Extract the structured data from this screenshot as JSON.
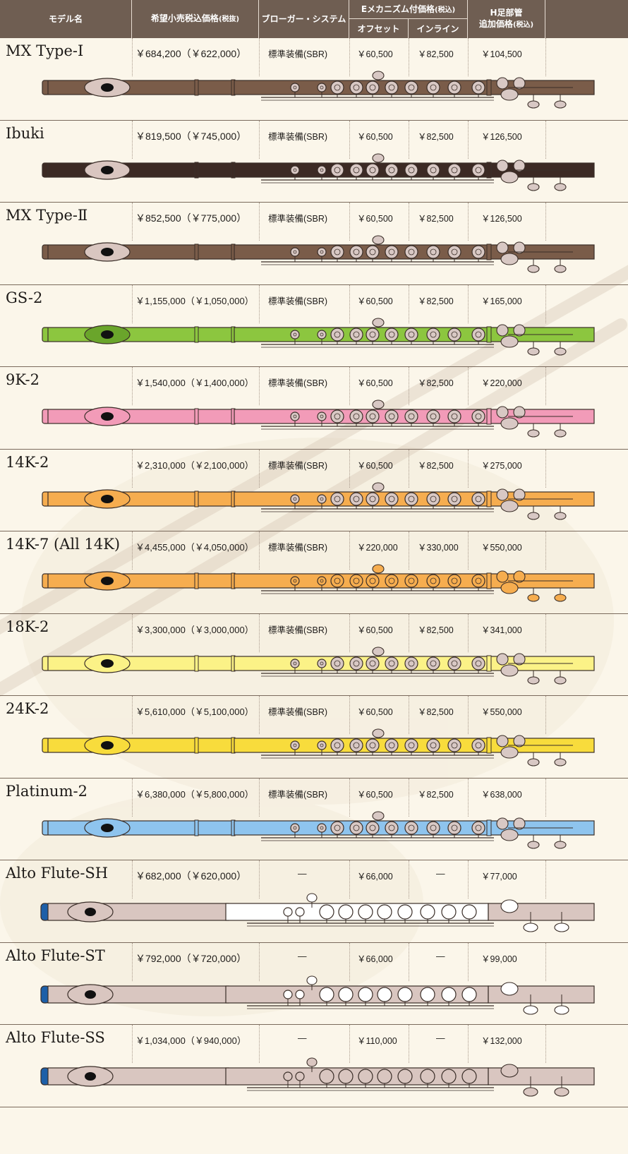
{
  "header": {
    "model": "モデル名",
    "retail_price": "希望小売税込価格",
    "retail_price_note": "(税抜)",
    "brogger": "ブローガー・システム",
    "e_mech": "Eメカニズム付価格",
    "e_mech_note": "(税込)",
    "offset": "オフセット",
    "inline": "インライン",
    "h_foot_line1": "H足部管",
    "h_foot_line2": "追加価格",
    "h_foot_note": "(税込)"
  },
  "rows": [
    {
      "model": "MX Type-Ⅰ",
      "price": "￥684,200",
      "price_ex": "（￥622,000）",
      "brogger": "標準装備(SBR)",
      "offset": "￥60,500",
      "inline": "￥82,500",
      "hfoot": "￥104,500",
      "body_color": "#7a5c49",
      "lip_color": "#d9c6c0",
      "key_color": "#d8c8c4",
      "type": "flute"
    },
    {
      "model": "Ibuki",
      "price": "￥819,500",
      "price_ex": "（￥745,000）",
      "brogger": "標準装備(SBR)",
      "offset": "￥60,500",
      "inline": "￥82,500",
      "hfoot": "￥126,500",
      "body_color": "#3c2a24",
      "lip_color": "#d9c6c0",
      "key_color": "#d8c8c4",
      "type": "flute"
    },
    {
      "model": "MX Type-Ⅱ",
      "price": "￥852,500",
      "price_ex": "（￥775,000）",
      "brogger": "標準装備(SBR)",
      "offset": "￥60,500",
      "inline": "￥82,500",
      "hfoot": "￥126,500",
      "body_color": "#7a5c49",
      "lip_color": "#d9c6c0",
      "key_color": "#d8c8c4",
      "type": "flute"
    },
    {
      "model": "GS-2",
      "price": "￥1,155,000",
      "price_ex": "（￥1,050,000）",
      "brogger": "標準装備(SBR)",
      "offset": "￥60,500",
      "inline": "￥82,500",
      "hfoot": "￥165,000",
      "body_color": "#8cc63f",
      "lip_color": "#6aa52b",
      "key_color": "#d8c8c4",
      "type": "flute"
    },
    {
      "model": "9K-2",
      "price": "￥1,540,000",
      "price_ex": "（￥1,400,000）",
      "brogger": "標準装備(SBR)",
      "offset": "￥60,500",
      "inline": "￥82,500",
      "hfoot": "￥220,000",
      "body_color": "#f29bb8",
      "lip_color": "#f29bb8",
      "key_color": "#d8c8c4",
      "type": "flute"
    },
    {
      "model": "14K-2",
      "price": "￥2,310,000",
      "price_ex": "（￥2,100,000）",
      "brogger": "標準装備(SBR)",
      "offset": "￥60,500",
      "inline": "￥82,500",
      "hfoot": "￥275,000",
      "body_color": "#f6ad4f",
      "lip_color": "#f6ad4f",
      "key_color": "#d8c8c4",
      "type": "flute"
    },
    {
      "model": "14K-7 (All 14K)",
      "price": "￥4,455,000",
      "price_ex": "（￥4,050,000）",
      "brogger": "標準装備(SBR)",
      "offset": "￥220,000",
      "inline": "￥330,000",
      "hfoot": "￥550,000",
      "body_color": "#f6ad4f",
      "lip_color": "#f6ad4f",
      "key_color": "#f6ad4f",
      "type": "flute"
    },
    {
      "model": "18K-2",
      "price": "￥3,300,000",
      "price_ex": "（￥3,000,000）",
      "brogger": "標準装備(SBR)",
      "offset": "￥60,500",
      "inline": "￥82,500",
      "hfoot": "￥341,000",
      "body_color": "#fbf287",
      "lip_color": "#fbf287",
      "key_color": "#d8c8c4",
      "type": "flute"
    },
    {
      "model": "24K-2",
      "price": "￥5,610,000",
      "price_ex": "（￥5,100,000）",
      "brogger": "標準装備(SBR)",
      "offset": "￥60,500",
      "inline": "￥82,500",
      "hfoot": "￥550,000",
      "body_color": "#f8dc3c",
      "lip_color": "#f8dc3c",
      "key_color": "#d8c8c4",
      "type": "flute"
    },
    {
      "model": "Platinum-2",
      "price": "￥6,380,000",
      "price_ex": "（￥5,800,000）",
      "brogger": "標準装備(SBR)",
      "offset": "￥60,500",
      "inline": "￥82,500",
      "hfoot": "￥638,000",
      "body_color": "#8ec4ee",
      "lip_color": "#8ec4ee",
      "key_color": "#d8c8c4",
      "type": "flute"
    },
    {
      "model": "Alto Flute-SH",
      "price": "￥682,000",
      "price_ex": "（￥620,000）",
      "brogger": "—",
      "offset": "￥66,000",
      "inline": "—",
      "hfoot": "￥77,000",
      "body_color": "#d9c6c0",
      "lip_color": "#d9c6c0",
      "key_color": "#ffffff",
      "type": "alto",
      "alto_mid": "#ffffff"
    },
    {
      "model": "Alto Flute-ST",
      "price": "￥792,000",
      "price_ex": "（￥720,000）",
      "brogger": "—",
      "offset": "￥66,000",
      "inline": "—",
      "hfoot": "￥99,000",
      "body_color": "#d9c6c0",
      "lip_color": "#d9c6c0",
      "key_color": "#ffffff",
      "type": "alto",
      "alto_mid": "#d9c6c0"
    },
    {
      "model": "Alto Flute-SS",
      "price": "￥1,034,000",
      "price_ex": "（￥940,000）",
      "brogger": "—",
      "offset": "￥110,000",
      "inline": "—",
      "hfoot": "￥132,000",
      "body_color": "#d9c6c0",
      "lip_color": "#d9c6c0",
      "key_color": "#d9c6c0",
      "type": "alto",
      "alto_mid": "#d9c6c0"
    }
  ]
}
